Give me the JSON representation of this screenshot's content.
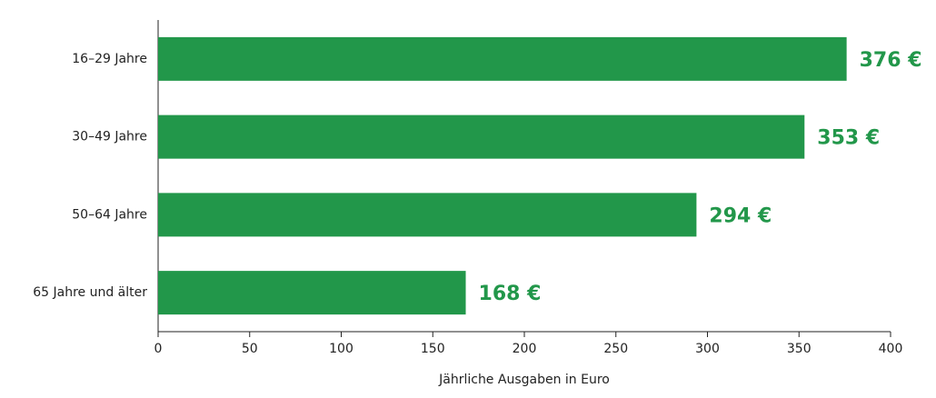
{
  "chart_data": {
    "type": "hbar",
    "categories": [
      "16–29 Jahre",
      "30–49 Jahre",
      "50–64 Jahre",
      "65 Jahre und älter"
    ],
    "values": [
      376,
      353,
      294,
      168
    ],
    "value_labels": [
      "376 €",
      "353 €",
      "294 €",
      "168 €"
    ],
    "color": "#22974a",
    "xlabel": "Jährliche Ausgaben in Euro",
    "xlim": [
      0,
      400
    ],
    "xticks": [
      0,
      50,
      100,
      150,
      200,
      250,
      300,
      350,
      400
    ]
  }
}
